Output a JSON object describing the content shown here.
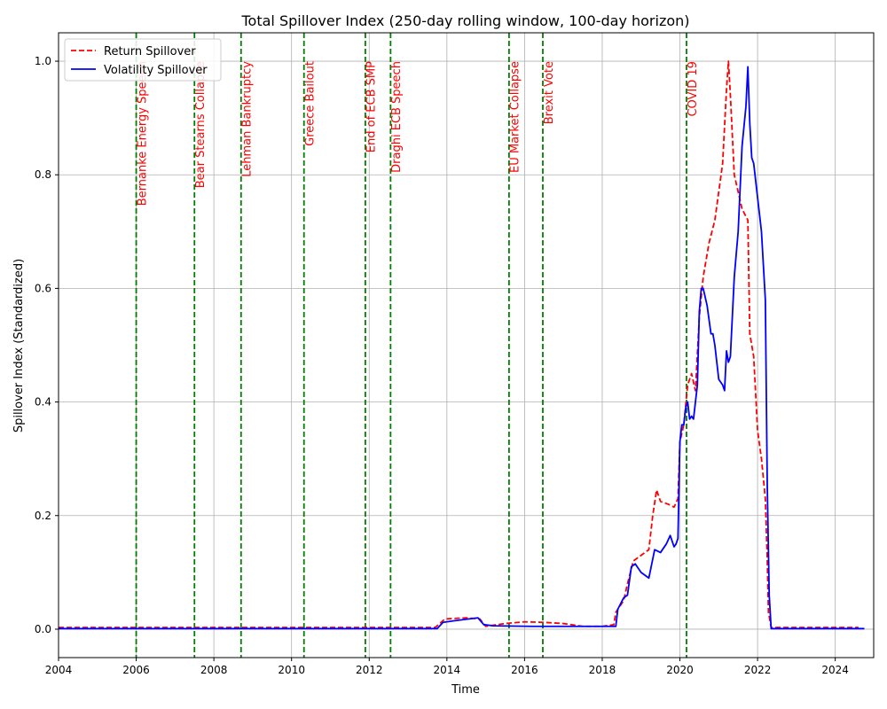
{
  "chart_data": {
    "type": "line",
    "title": "Total Spillover Index (250-day rolling window, 100-day horizon)",
    "xlabel": "Time",
    "ylabel": "Spillover Index (Standardized)",
    "xlim": [
      2004.0,
      2024.99
    ],
    "ylim": [
      -0.05,
      1.05
    ],
    "xticks": [
      2004,
      2006,
      2008,
      2010,
      2012,
      2014,
      2016,
      2018,
      2020,
      2022,
      2024
    ],
    "yticks": [
      0.0,
      0.2,
      0.4,
      0.6,
      0.8,
      1.0
    ],
    "grid": true,
    "legend": "upper-left",
    "colors": {
      "return": "#ff0000",
      "volatility": "#0000ff",
      "event": "#008000",
      "grid": "#b0b0b0"
    },
    "events": [
      {
        "x": 2006.0,
        "label": "Bernanke Energy Speech"
      },
      {
        "x": 2007.5,
        "label": "Bear Stearns Collapse"
      },
      {
        "x": 2008.7,
        "label": "Lehman Bankruptcy"
      },
      {
        "x": 2010.32,
        "label": "Greece Bailout"
      },
      {
        "x": 2011.9,
        "label": "End of ECB SMP"
      },
      {
        "x": 2012.55,
        "label": "Draghi ECB Speech"
      },
      {
        "x": 2015.6,
        "label": "EU Market Collapse"
      },
      {
        "x": 2016.47,
        "label": "Brexit Vote"
      },
      {
        "x": 2020.17,
        "label": "COVID 19"
      }
    ],
    "series": [
      {
        "name": "Return Spillover",
        "style": "dashed",
        "x": [
          2004.0,
          2013.7,
          2013.95,
          2014.5,
          2014.85,
          2015.0,
          2015.5,
          2016.0,
          2016.5,
          2017.0,
          2017.5,
          2018.0,
          2018.3,
          2018.35,
          2018.45,
          2018.55,
          2018.65,
          2018.8,
          2019.0,
          2019.2,
          2019.3,
          2019.4,
          2019.5,
          2019.7,
          2019.85,
          2019.95,
          2020.0,
          2020.1,
          2020.2,
          2020.3,
          2020.4,
          2020.5,
          2020.6,
          2020.75,
          2020.9,
          2021.0,
          2021.1,
          2021.2,
          2021.25,
          2021.3,
          2021.4,
          2021.6,
          2021.75,
          2021.8,
          2021.9,
          2022.0,
          2022.1,
          2022.2,
          2022.25,
          2022.28,
          2022.35,
          2024.6
        ],
        "y": [
          0.003,
          0.003,
          0.018,
          0.02,
          0.018,
          0.005,
          0.01,
          0.013,
          0.012,
          0.01,
          0.005,
          0.005,
          0.008,
          0.03,
          0.04,
          0.05,
          0.08,
          0.12,
          0.13,
          0.14,
          0.2,
          0.245,
          0.225,
          0.22,
          0.215,
          0.23,
          0.33,
          0.36,
          0.43,
          0.45,
          0.42,
          0.55,
          0.62,
          0.68,
          0.72,
          0.77,
          0.82,
          0.95,
          1.0,
          0.94,
          0.8,
          0.74,
          0.72,
          0.52,
          0.48,
          0.35,
          0.3,
          0.23,
          0.12,
          0.03,
          0.003,
          0.003
        ]
      },
      {
        "name": "Volatility Spillover",
        "style": "solid",
        "x": [
          2004.0,
          2013.75,
          2013.9,
          2014.2,
          2014.8,
          2014.95,
          2015.2,
          2016.2,
          2018.35,
          2018.4,
          2018.55,
          2018.65,
          2018.75,
          2018.85,
          2019.0,
          2019.2,
          2019.35,
          2019.5,
          2019.65,
          2019.75,
          2019.85,
          2019.9,
          2019.95,
          2020.0,
          2020.05,
          2020.1,
          2020.15,
          2020.2,
          2020.25,
          2020.3,
          2020.35,
          2020.45,
          2020.5,
          2020.55,
          2020.6,
          2020.7,
          2020.8,
          2020.85,
          2020.9,
          2021.0,
          2021.1,
          2021.15,
          2021.2,
          2021.25,
          2021.3,
          2021.4,
          2021.5,
          2021.6,
          2021.7,
          2021.75,
          2021.8,
          2021.85,
          2021.9,
          2022.0,
          2022.1,
          2022.2,
          2022.25,
          2022.3,
          2022.35,
          2024.75
        ],
        "y": [
          0.001,
          0.001,
          0.012,
          0.015,
          0.02,
          0.008,
          0.006,
          0.005,
          0.005,
          0.035,
          0.055,
          0.06,
          0.11,
          0.115,
          0.1,
          0.09,
          0.14,
          0.135,
          0.15,
          0.165,
          0.145,
          0.15,
          0.16,
          0.33,
          0.36,
          0.36,
          0.39,
          0.4,
          0.37,
          0.375,
          0.37,
          0.43,
          0.56,
          0.6,
          0.6,
          0.57,
          0.52,
          0.52,
          0.5,
          0.44,
          0.43,
          0.42,
          0.49,
          0.47,
          0.48,
          0.62,
          0.7,
          0.85,
          0.92,
          0.99,
          0.89,
          0.83,
          0.82,
          0.76,
          0.7,
          0.58,
          0.25,
          0.06,
          0.001,
          0.001
        ]
      }
    ]
  }
}
